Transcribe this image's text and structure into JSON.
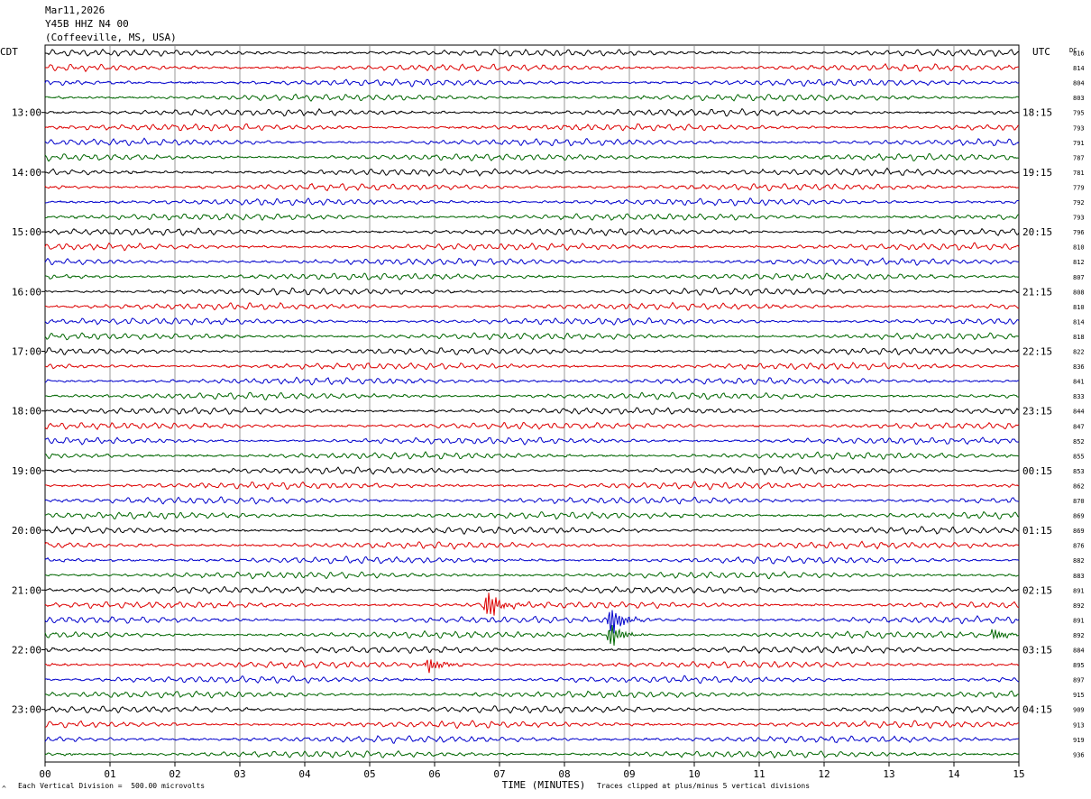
{
  "header": {
    "date": "Mar11,2026",
    "station": "Y45B HHZ N4 00",
    "location": "(Coffeeville, MS, USA)"
  },
  "left_timezone": "CDT",
  "right_timezone": "UTC",
  "dc_label": "DC",
  "footer": {
    "scale_note": "Each Vertical Division =  500.00 microvolts",
    "clip_note": "Traces clipped at plus/minus 5 vertical divisions",
    "corner_mark": "^"
  },
  "colors": {
    "trace_cycle": [
      "#000000",
      "#dd0000",
      "#0000cc",
      "#006600"
    ],
    "grid": "#808080"
  },
  "chart_data": {
    "type": "line",
    "xlabel": "TIME (MINUTES)",
    "x_ticks": [
      "00",
      "01",
      "02",
      "03",
      "04",
      "05",
      "06",
      "07",
      "08",
      "09",
      "10",
      "11",
      "12",
      "13",
      "14",
      "15"
    ],
    "xlim": [
      0,
      15
    ],
    "left_hour_labels": [
      {
        "row": 4,
        "text": "13:00"
      },
      {
        "row": 8,
        "text": "14:00"
      },
      {
        "row": 12,
        "text": "15:00"
      },
      {
        "row": 16,
        "text": "16:00"
      },
      {
        "row": 20,
        "text": "17:00"
      },
      {
        "row": 24,
        "text": "18:00"
      },
      {
        "row": 28,
        "text": "19:00"
      },
      {
        "row": 32,
        "text": "20:00"
      },
      {
        "row": 36,
        "text": "21:00"
      },
      {
        "row": 40,
        "text": "22:00"
      },
      {
        "row": 44,
        "text": "23:00"
      }
    ],
    "right_hour_labels": [
      {
        "row": 4,
        "text": "18:15"
      },
      {
        "row": 8,
        "text": "19:15"
      },
      {
        "row": 12,
        "text": "20:15"
      },
      {
        "row": 16,
        "text": "21:15"
      },
      {
        "row": 20,
        "text": "22:15"
      },
      {
        "row": 24,
        "text": "23:15"
      },
      {
        "row": 28,
        "text": "00:15"
      },
      {
        "row": 32,
        "text": "01:15"
      },
      {
        "row": 36,
        "text": "02:15"
      },
      {
        "row": 40,
        "text": "03:15"
      },
      {
        "row": 44,
        "text": "04:15"
      }
    ],
    "dc_offsets": [
      816,
      814,
      804,
      803,
      795,
      793,
      791,
      787,
      781,
      779,
      792,
      793,
      796,
      810,
      812,
      807,
      808,
      810,
      814,
      818,
      822,
      836,
      841,
      833,
      844,
      847,
      852,
      855,
      853,
      862,
      870,
      869,
      869,
      876,
      882,
      883,
      891,
      892,
      891,
      892,
      884,
      895,
      897,
      915,
      909,
      913,
      919,
      936
    ],
    "events": [
      {
        "row": 37,
        "minute": 6.8,
        "amplitude": 1.0
      },
      {
        "row": 38,
        "minute": 8.7,
        "amplitude": 1.0
      },
      {
        "row": 39,
        "minute": 8.7,
        "amplitude": 0.8
      },
      {
        "row": 39,
        "minute": 14.6,
        "amplitude": 0.35
      },
      {
        "row": 41,
        "minute": 5.9,
        "amplitude": 0.5
      }
    ]
  }
}
